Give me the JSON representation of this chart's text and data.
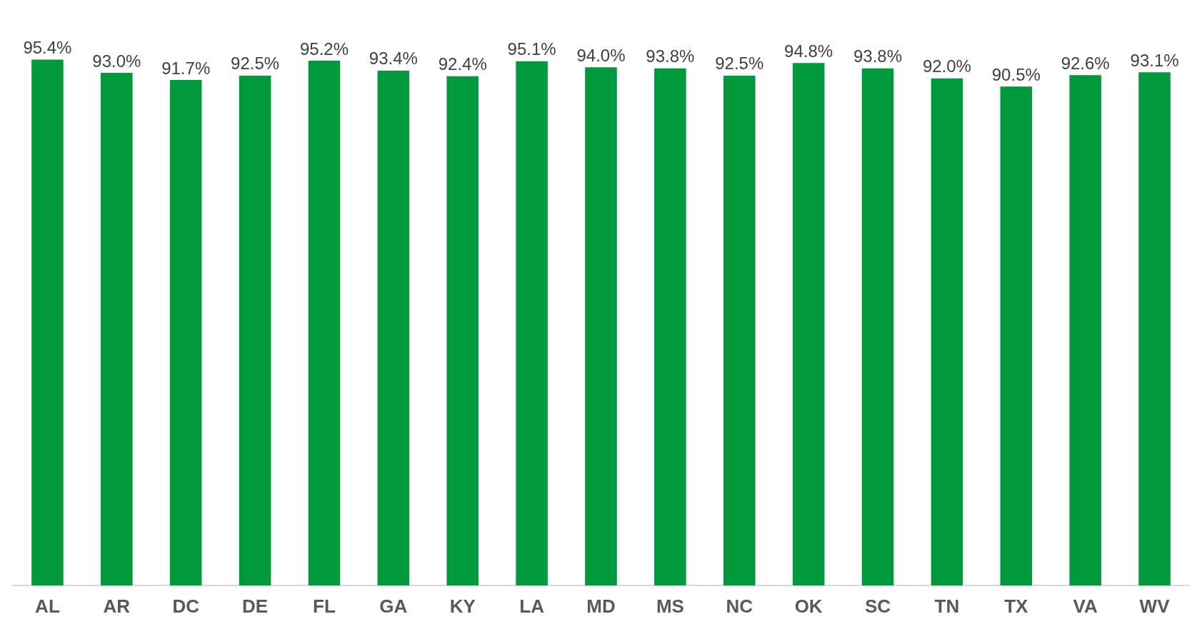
{
  "chart_data": {
    "type": "bar",
    "categories": [
      "AL",
      "AR",
      "DC",
      "DE",
      "FL",
      "GA",
      "KY",
      "LA",
      "MD",
      "MS",
      "NC",
      "OK",
      "SC",
      "TN",
      "TX",
      "VA",
      "WV"
    ],
    "values": [
      95.4,
      93.0,
      91.7,
      92.5,
      95.2,
      93.4,
      92.4,
      95.1,
      94.0,
      93.8,
      92.5,
      94.8,
      93.8,
      92.0,
      90.5,
      92.6,
      93.1
    ],
    "value_labels": [
      "95.4%",
      "93.0%",
      "91.7%",
      "92.5%",
      "95.2%",
      "93.4%",
      "92.4%",
      "95.1%",
      "94.0%",
      "93.8%",
      "92.5%",
      "94.8%",
      "93.8%",
      "92.0%",
      "90.5%",
      "92.6%",
      "93.1%"
    ],
    "color": "#009a3d",
    "tick_labels": "x"
  }
}
